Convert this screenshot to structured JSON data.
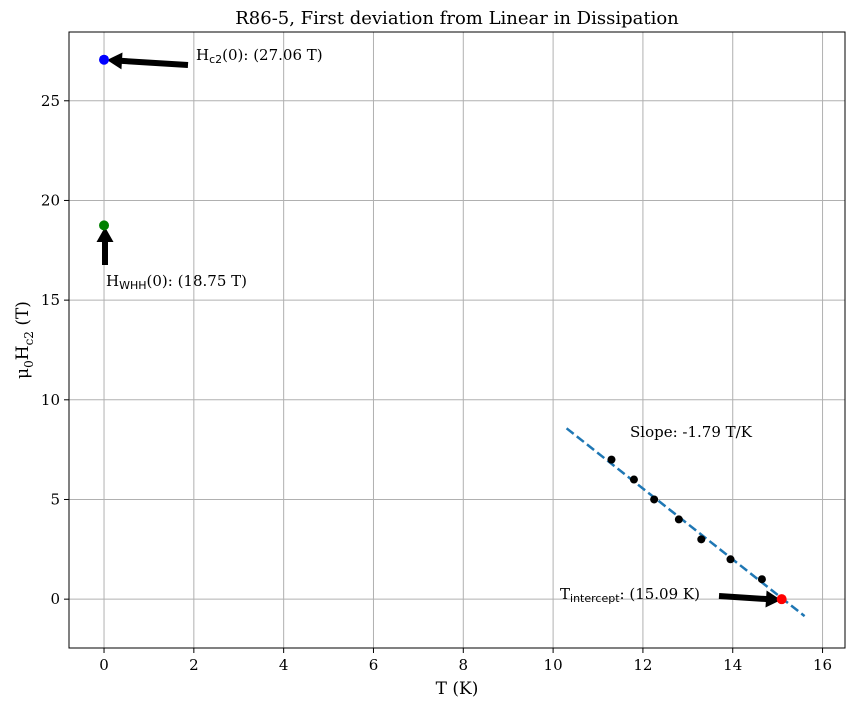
{
  "chart_data": {
    "type": "scatter",
    "title": "R86-5, First deviation from Linear in Dissipation",
    "xlabel": "T (K)",
    "ylabel": "μ₀H_c2 (T)",
    "ylabel_parts": {
      "prefix": "μ",
      "sub1": "0",
      "mid": "H",
      "sub2": "c2",
      "suffix": " (T)"
    },
    "xlim": [
      -0.78,
      16.5
    ],
    "ylim": [
      -2.45,
      28.45
    ],
    "xticks": [
      0,
      2,
      4,
      6,
      8,
      10,
      12,
      14,
      16
    ],
    "yticks": [
      0,
      5,
      10,
      15,
      20,
      25
    ],
    "grid": true,
    "data_points": {
      "color": "#000000",
      "x": [
        11.3,
        11.8,
        12.25,
        12.8,
        13.3,
        13.95,
        14.65
      ],
      "y": [
        7.0,
        6.0,
        5.0,
        4.0,
        3.0,
        2.0,
        1.0
      ]
    },
    "fit_line": {
      "color": "#1f77b4",
      "style": "dashed",
      "x": [
        10.3,
        15.6
      ],
      "y": [
        8.57,
        -0.85
      ],
      "slope_text": "Slope: -1.79 T/K"
    },
    "special_points": [
      {
        "id": "hc2",
        "x": 0,
        "y": 27.06,
        "color": "#0000ff",
        "label_main": "H",
        "label_sub": "c2",
        "label_rest": "(0): (27.06 T)"
      },
      {
        "id": "hwhh",
        "x": 0,
        "y": 18.75,
        "color": "#008000",
        "label_main": "H",
        "label_sub": "WHH",
        "label_rest": "(0): (18.75 T)"
      },
      {
        "id": "tint",
        "x": 15.09,
        "y": 0,
        "color": "#ff0000",
        "label_main": "T",
        "label_sub": "intercept",
        "label_rest": ": (15.09 K)"
      }
    ]
  }
}
